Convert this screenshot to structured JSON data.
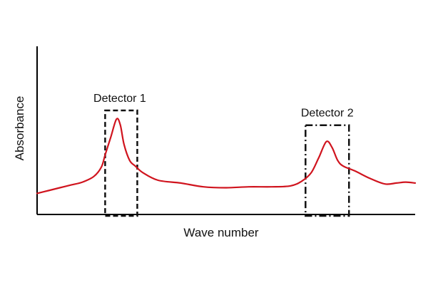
{
  "chart_data": {
    "type": "line",
    "title": "",
    "xlabel": "Wave number",
    "ylabel": "Absorbance",
    "grid": false,
    "legend": "none",
    "line_color": "#d0141e",
    "series": [
      {
        "points": [
          [
            0.0,
            0.08
          ],
          [
            0.03,
            0.11
          ],
          [
            0.06,
            0.14
          ],
          [
            0.09,
            0.17
          ],
          [
            0.12,
            0.2
          ],
          [
            0.15,
            0.26
          ],
          [
            0.17,
            0.36
          ],
          [
            0.18,
            0.49
          ],
          [
            0.195,
            0.68
          ],
          [
            0.21,
            0.87
          ],
          [
            0.22,
            0.81
          ],
          [
            0.23,
            0.6
          ],
          [
            0.245,
            0.43
          ],
          [
            0.26,
            0.37
          ],
          [
            0.28,
            0.3
          ],
          [
            0.32,
            0.22
          ],
          [
            0.38,
            0.19
          ],
          [
            0.44,
            0.15
          ],
          [
            0.5,
            0.14
          ],
          [
            0.56,
            0.15
          ],
          [
            0.62,
            0.15
          ],
          [
            0.67,
            0.16
          ],
          [
            0.7,
            0.21
          ],
          [
            0.725,
            0.3
          ],
          [
            0.745,
            0.46
          ],
          [
            0.765,
            0.63
          ],
          [
            0.78,
            0.57
          ],
          [
            0.795,
            0.43
          ],
          [
            0.81,
            0.37
          ],
          [
            0.84,
            0.32
          ],
          [
            0.88,
            0.24
          ],
          [
            0.92,
            0.18
          ],
          [
            0.95,
            0.19
          ],
          [
            0.975,
            0.2
          ],
          [
            1.0,
            0.19
          ]
        ]
      }
    ],
    "annotations": [
      {
        "label": "Detector 1",
        "x_range": [
          0.18,
          0.265
        ],
        "y_range": [
          0.0,
          1.0
        ],
        "style": "dashed"
      },
      {
        "label": "Detector 2",
        "x_range": [
          0.71,
          0.825
        ],
        "y_range": [
          0.0,
          0.86
        ],
        "style": "dash-dot"
      }
    ]
  }
}
